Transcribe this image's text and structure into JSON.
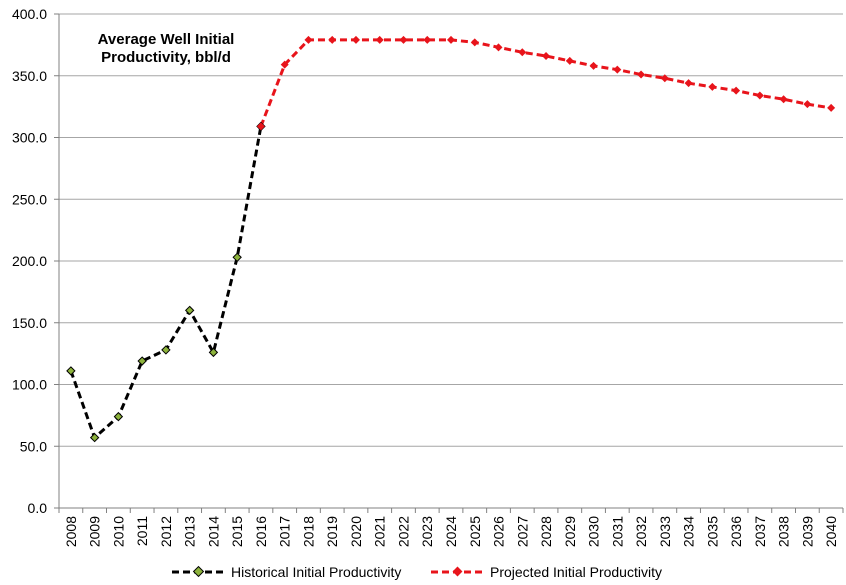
{
  "chart_data": {
    "type": "line",
    "title_lines": [
      "Average Well Initial",
      "Productivity, bbl/d"
    ],
    "xlabel": "",
    "ylabel": "",
    "ylim": [
      0,
      400
    ],
    "yticks": [
      "0.0",
      "50.0",
      "100.0",
      "150.0",
      "200.0",
      "250.0",
      "300.0",
      "350.0",
      "400.0"
    ],
    "grid": true,
    "legend_position": "bottom",
    "categories": [
      "2008",
      "2009",
      "2010",
      "2011",
      "2012",
      "2013",
      "2014",
      "2015",
      "2016",
      "2017",
      "2018",
      "2019",
      "2020",
      "2021",
      "2022",
      "2023",
      "2024",
      "2025",
      "2026",
      "2027",
      "2028",
      "2029",
      "2030",
      "2031",
      "2032",
      "2033",
      "2034",
      "2035",
      "2036",
      "2037",
      "2038",
      "2039",
      "2040"
    ],
    "series": [
      {
        "name": "Historical Initial Productivity",
        "line_color": "#000000",
        "marker_color": "#8db33c",
        "values": [
          111,
          57,
          74,
          119,
          128,
          160,
          126,
          203,
          309,
          null,
          null,
          null,
          null,
          null,
          null,
          null,
          null,
          null,
          null,
          null,
          null,
          null,
          null,
          null,
          null,
          null,
          null,
          null,
          null,
          null,
          null,
          null,
          null
        ]
      },
      {
        "name": "Projected Initial Productivity",
        "line_color": "#e8141b",
        "marker_color": "#e8141b",
        "values": [
          null,
          null,
          null,
          null,
          null,
          null,
          null,
          null,
          309,
          359,
          379,
          379,
          379,
          379,
          379,
          379,
          379,
          377,
          373,
          369,
          366,
          362,
          358,
          355,
          351,
          348,
          344,
          341,
          338,
          334,
          331,
          327,
          324
        ]
      }
    ]
  }
}
